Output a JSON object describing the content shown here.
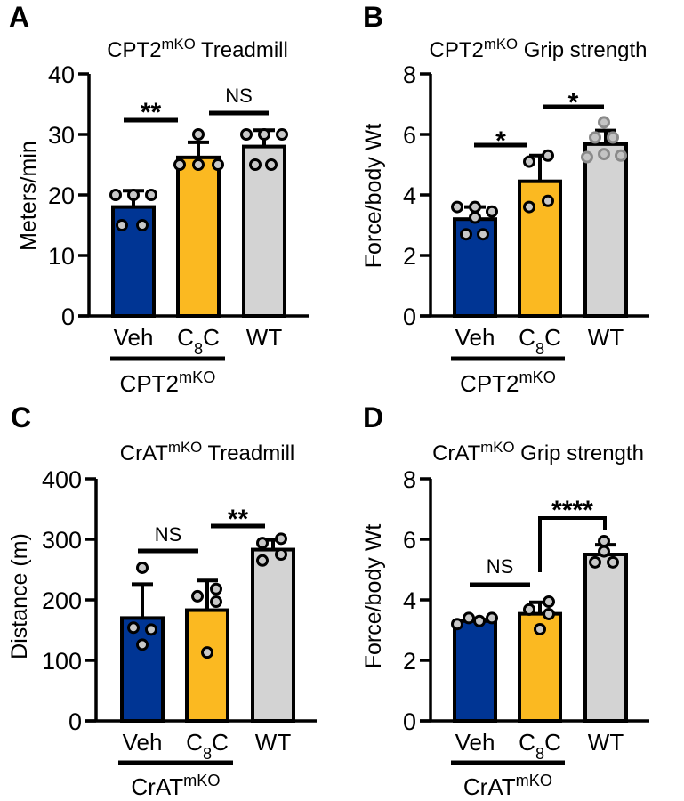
{
  "colors": {
    "Veh": "#003594",
    "C8C": "#fbb921",
    "WT": "#d3d3d3",
    "point": "#c8c8c8",
    "point_wt_grip": "#a8a8a8"
  },
  "chart_data": [
    {
      "panel": "A",
      "type": "bar",
      "title": {
        "main": "CPT2",
        "sup": "mKO",
        "rest": " Treadmill"
      },
      "ylabel": "Meters/min",
      "ylim": [
        0,
        40
      ],
      "yticks": [
        0,
        10,
        20,
        30,
        40
      ],
      "categories": [
        {
          "main": "Veh"
        },
        {
          "main": "C",
          "sub": "8",
          "rest": "C"
        },
        {
          "main": "WT"
        }
      ],
      "group_label": {
        "main": "CPT2",
        "sup": "mKO"
      },
      "series": [
        {
          "category": "Veh",
          "mean": 18,
          "error": 2.7,
          "points": [
            20,
            20,
            20,
            15,
            15
          ]
        },
        {
          "category": "C8C",
          "mean": 26.2,
          "error": 2.5,
          "points": [
            30,
            25,
            25,
            25
          ]
        },
        {
          "category": "WT",
          "mean": 28,
          "error": 2.7,
          "points": [
            30,
            30,
            30,
            25,
            25
          ]
        }
      ],
      "significance": [
        {
          "pair": [
            "Veh",
            "C8C"
          ],
          "label": "**"
        },
        {
          "pair": [
            "C8C",
            "WT"
          ],
          "label": "NS"
        }
      ]
    },
    {
      "panel": "B",
      "type": "bar",
      "title": {
        "main": "CPT2",
        "sup": "mKO",
        "rest": " Grip strength"
      },
      "ylabel": "Force/body Wt",
      "ylim": [
        0,
        8
      ],
      "yticks": [
        0,
        2,
        4,
        6,
        8
      ],
      "categories": [
        {
          "main": "Veh"
        },
        {
          "main": "C",
          "sub": "8",
          "rest": "C"
        },
        {
          "main": "WT"
        }
      ],
      "group_label": {
        "main": "CPT2",
        "sup": "mKO"
      },
      "series": [
        {
          "category": "Veh",
          "mean": 3.2,
          "error": 0.4,
          "points": [
            3.6,
            3.6,
            3.45,
            3.25,
            2.7,
            2.7
          ]
        },
        {
          "category": "C8C",
          "mean": 4.45,
          "error": 0.85,
          "points": [
            5.1,
            5.3,
            3.6,
            3.8
          ]
        },
        {
          "category": "WT",
          "mean": 5.68,
          "error": 0.45,
          "points": [
            6.4,
            5.9,
            5.9,
            5.25,
            5.35,
            5.3
          ]
        }
      ],
      "significance": [
        {
          "pair": [
            "Veh",
            "C8C"
          ],
          "label": "*"
        },
        {
          "pair": [
            "C8C",
            "WT"
          ],
          "label": "*"
        }
      ]
    },
    {
      "panel": "C",
      "type": "bar",
      "title": {
        "main": "CrAT",
        "sup": "mKO",
        "rest": " Treadmill"
      },
      "ylabel": "Distance (m)",
      "ylim": [
        0,
        400
      ],
      "yticks": [
        0,
        100,
        200,
        300,
        400
      ],
      "categories": [
        {
          "main": "Veh"
        },
        {
          "main": "C",
          "sub": "8",
          "rest": "C"
        },
        {
          "main": "WT"
        }
      ],
      "group_label": {
        "main": "CrAT",
        "sup": "mKO"
      },
      "series": [
        {
          "category": "Veh",
          "mean": 170,
          "error": 56,
          "points": [
            253,
            154,
            151,
            126
          ]
        },
        {
          "category": "C8C",
          "mean": 183,
          "error": 49,
          "points": [
            206,
            218,
            197,
            113
          ]
        },
        {
          "category": "WT",
          "mean": 283,
          "error": 16,
          "points": [
            294,
            301,
            265,
            275
          ]
        }
      ],
      "significance": [
        {
          "pair": [
            "Veh",
            "C8C"
          ],
          "label": "NS"
        },
        {
          "pair": [
            "C8C",
            "WT"
          ],
          "label": "**"
        }
      ]
    },
    {
      "panel": "D",
      "type": "bar",
      "title": {
        "main": "CrAT",
        "sup": "mKO",
        "rest": " Grip strength"
      },
      "ylabel": "Force/body Wt",
      "ylim": [
        0,
        8
      ],
      "yticks": [
        0,
        2,
        4,
        6,
        8
      ],
      "categories": [
        {
          "main": "Veh"
        },
        {
          "main": "C",
          "sub": "8",
          "rest": "C"
        },
        {
          "main": "WT"
        }
      ],
      "group_label": {
        "main": "CrAT",
        "sup": "mKO"
      },
      "series": [
        {
          "category": "Veh",
          "mean": 3.3,
          "error": 0.05,
          "points": [
            3.2,
            3.4,
            3.3,
            3.4
          ]
        },
        {
          "category": "C8C",
          "mean": 3.54,
          "error": 0.38,
          "points": [
            3.68,
            3.94,
            3.53,
            3.03
          ]
        },
        {
          "category": "WT",
          "mean": 5.5,
          "error": 0.32,
          "points": [
            5.94,
            5.6,
            5.24,
            5.24
          ]
        }
      ],
      "significance": [
        {
          "pair": [
            "Veh",
            "C8C"
          ],
          "label": "NS"
        },
        {
          "pair": [
            "C8C",
            "WT"
          ],
          "label": "****"
        }
      ]
    }
  ]
}
